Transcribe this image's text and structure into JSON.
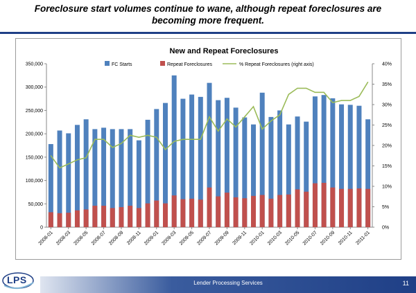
{
  "slide": {
    "title_line1": "Foreclosure start volumes continue to wane, although repeat foreclosures are",
    "title_line2": "becoming more frequent.",
    "footer_text": "Lender Processing Services",
    "page_number": "11",
    "logo_text": "LPS"
  },
  "colors": {
    "fc_starts": "#4f81bd",
    "repeat": "#c0504d",
    "pct_line": "#9bbb59",
    "brand_blue": "#1f3f86"
  },
  "chart_data": {
    "type": "bar",
    "title": "New and Repeat Foreclosures",
    "categories": [
      "2008-01",
      "2008-02",
      "2008-03",
      "2008-04",
      "2008-05",
      "2008-06",
      "2008-07",
      "2008-08",
      "2008-09",
      "2008-10",
      "2008-11",
      "2008-12",
      "2009-01",
      "2009-02",
      "2009-03",
      "2009-04",
      "2009-05",
      "2009-06",
      "2009-07",
      "2009-08",
      "2009-09",
      "2009-10",
      "2009-11",
      "2009-12",
      "2010-01",
      "2010-02",
      "2010-03",
      "2010-04",
      "2010-05",
      "2010-06",
      "2010-07",
      "2010-08",
      "2010-09",
      "2010-10",
      "2010-11",
      "2010-12",
      "2011-01"
    ],
    "x_tick_labels": [
      "2008-01",
      "2008-03",
      "2008-05",
      "2008-07",
      "2008-09",
      "2008-11",
      "2009-01",
      "2009-03",
      "2009-05",
      "2009-07",
      "2009-09",
      "2009-11",
      "2010-01",
      "2010-03",
      "2010-05",
      "2010-07",
      "2010-09",
      "2010-11",
      "2011-01"
    ],
    "series": [
      {
        "name": "FC Starts",
        "type": "bar",
        "axis": "left",
        "values": [
          178000,
          207000,
          201000,
          219000,
          231000,
          210000,
          213000,
          210000,
          210000,
          210000,
          186000,
          230000,
          253000,
          266000,
          325000,
          275000,
          284000,
          279000,
          309000,
          272000,
          277000,
          256000,
          235000,
          220000,
          288000,
          236000,
          250000,
          220000,
          237000,
          226000,
          280000,
          283000,
          276000,
          263000,
          262000,
          260000,
          231000
        ]
      },
      {
        "name": "Repeat Foreclosures",
        "type": "bar",
        "axis": "left",
        "values": [
          32000,
          30000,
          31000,
          36000,
          38000,
          46000,
          46000,
          41000,
          43000,
          46000,
          41000,
          51000,
          57000,
          51000,
          68000,
          60000,
          61000,
          59000,
          85000,
          66000,
          74000,
          64000,
          62000,
          67000,
          69000,
          61000,
          69000,
          70000,
          81000,
          76000,
          94000,
          95000,
          85000,
          82000,
          82000,
          83000,
          82000
        ]
      },
      {
        "name": "% Repeat Foreclosures (right axis)",
        "type": "line",
        "axis": "right",
        "values": [
          17.5,
          14.5,
          15.5,
          16.5,
          17.0,
          21.5,
          21.5,
          19.5,
          20.5,
          22.5,
          22.0,
          22.5,
          22.0,
          19.0,
          21.0,
          21.5,
          21.5,
          21.5,
          27.0,
          23.5,
          26.5,
          24.5,
          27.0,
          29.5,
          24.0,
          26.0,
          27.5,
          32.5,
          34.0,
          34.0,
          33.0,
          33.0,
          30.5,
          31.0,
          31.0,
          32.0,
          35.5
        ]
      }
    ],
    "y_left": {
      "min": 0,
      "max": 350000,
      "ticks": [
        "0",
        "50,000",
        "100,000",
        "150,000",
        "200,000",
        "250,000",
        "300,000",
        "350,000"
      ]
    },
    "y_right": {
      "min": 0,
      "max": 40,
      "ticks": [
        "0%",
        "5%",
        "10%",
        "15%",
        "20%",
        "25%",
        "30%",
        "35%",
        "40%"
      ]
    },
    "legend_position": "top",
    "grid": false
  }
}
